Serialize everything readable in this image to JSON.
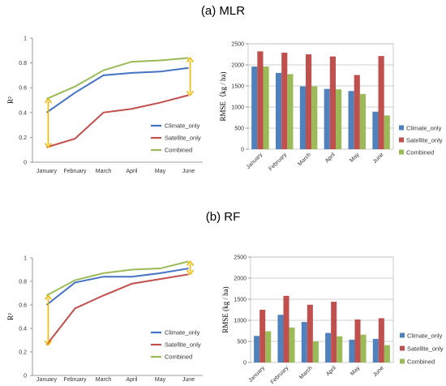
{
  "chart_data": [
    {
      "panel_title": "(a) MLR",
      "type": "line",
      "categories": [
        "January",
        "February",
        "March",
        "April",
        "May",
        "June"
      ],
      "ylabel": "R²",
      "ylim": [
        0,
        1
      ],
      "yticks": [
        "0",
        "0.2",
        "0.4",
        "0.6",
        "0.8",
        "1"
      ],
      "legend_position": "right",
      "series": [
        {
          "name": "Climate_only",
          "color": "#4472C4",
          "values": [
            0.4,
            0.56,
            0.7,
            0.72,
            0.73,
            0.76
          ]
        },
        {
          "name": "Satellite_only",
          "color": "#C0504D",
          "values": [
            0.12,
            0.19,
            0.4,
            0.43,
            0.48,
            0.54
          ]
        },
        {
          "name": "Combined",
          "color": "#9BBB59",
          "values": [
            0.51,
            0.61,
            0.74,
            0.81,
            0.82,
            0.84
          ]
        }
      ],
      "arrows": [
        {
          "category": "January",
          "from": 0.12,
          "to": 0.51,
          "color": "#F5B800"
        },
        {
          "category": "June",
          "from": 0.54,
          "to": 0.84,
          "color": "#F5B800"
        }
      ]
    },
    {
      "panel_title": "",
      "type": "bar",
      "categories": [
        "January",
        "February",
        "March",
        "April",
        "May",
        "June"
      ],
      "ylabel": "RMSE（kg / ha)",
      "ylim": [
        0,
        2500
      ],
      "yticks": [
        "0",
        "500",
        "1000",
        "1500",
        "2000",
        "2500"
      ],
      "grid": true,
      "legend_position": "right",
      "series": [
        {
          "name": "Climate_only",
          "color": "#4F81BD",
          "values": [
            1960,
            1810,
            1490,
            1430,
            1380,
            890
          ]
        },
        {
          "name": "Satellite_only",
          "color": "#C0504D",
          "values": [
            2320,
            2290,
            2250,
            2200,
            1760,
            2210
          ]
        },
        {
          "name": "Combined",
          "color": "#9BBB59",
          "values": [
            1960,
            1780,
            1490,
            1420,
            1310,
            800
          ]
        }
      ]
    },
    {
      "panel_title": "(b) RF",
      "type": "line",
      "categories": [
        "January",
        "February",
        "March",
        "April",
        "May",
        "June"
      ],
      "ylabel": "R²",
      "ylim": [
        0,
        1
      ],
      "yticks": [
        "0",
        "0.2",
        "0.4",
        "0.6",
        "0.8",
        "1"
      ],
      "legend_position": "right",
      "series": [
        {
          "name": "Climate_only",
          "color": "#4472C4",
          "values": [
            0.6,
            0.79,
            0.84,
            0.84,
            0.87,
            0.91
          ]
        },
        {
          "name": "Satellite_only",
          "color": "#C0504D",
          "values": [
            0.26,
            0.57,
            0.68,
            0.78,
            0.82,
            0.86
          ]
        },
        {
          "name": "Combined",
          "color": "#9BBB59",
          "values": [
            0.68,
            0.81,
            0.87,
            0.9,
            0.91,
            0.97
          ]
        }
      ],
      "arrows": [
        {
          "category": "January",
          "from": 0.26,
          "to": 0.68,
          "color": "#F5B800"
        },
        {
          "category": "June",
          "from": 0.86,
          "to": 0.97,
          "color": "#F5B800"
        }
      ]
    },
    {
      "panel_title": "",
      "type": "bar",
      "categories": [
        "January",
        "February",
        "March",
        "April",
        "May",
        "June"
      ],
      "ylabel": "RMSE (kg / ha)",
      "ylim": [
        0,
        2500
      ],
      "yticks": [
        "0",
        "500",
        "1000",
        "1500",
        "2000",
        "2500"
      ],
      "grid": true,
      "legend_position": "right",
      "series": [
        {
          "name": "Climate_only",
          "color": "#4F81BD",
          "values": [
            630,
            1130,
            960,
            700,
            540,
            560
          ]
        },
        {
          "name": "Satellite_only",
          "color": "#C0504D",
          "values": [
            1250,
            1580,
            1370,
            1440,
            1020,
            1050
          ]
        },
        {
          "name": "Combined",
          "color": "#9BBB59",
          "values": [
            740,
            830,
            500,
            620,
            660,
            410
          ]
        }
      ]
    }
  ]
}
